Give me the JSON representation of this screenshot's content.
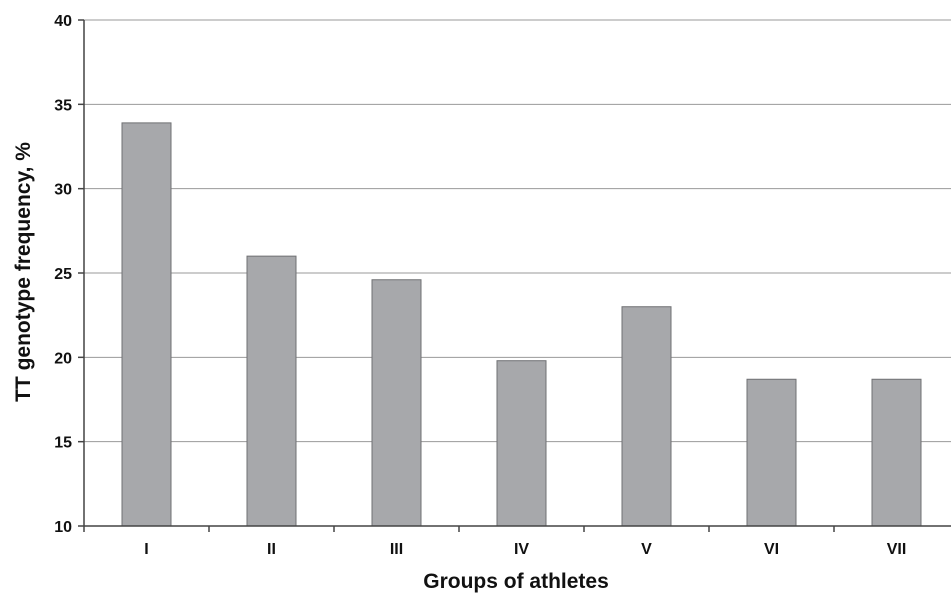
{
  "chart_data": {
    "type": "bar",
    "title": "",
    "xlabel": "Groups of athletes",
    "ylabel": "TT genotype frequency, %",
    "categories": [
      "I",
      "II",
      "III",
      "IV",
      "V",
      "VI",
      "VII"
    ],
    "values": [
      33.9,
      26.0,
      24.6,
      19.8,
      23.0,
      18.7,
      18.7
    ],
    "ylim": [
      10,
      40
    ],
    "yticks": [
      10,
      15,
      20,
      25,
      30,
      35,
      40
    ],
    "ytick_labels": [
      "10",
      "15",
      "20",
      "25",
      "30",
      "35",
      "40"
    ],
    "grid": true,
    "legend": "none",
    "colors": {
      "bar_fill": "#a7a8ab",
      "bar_stroke": "#6f7073",
      "grid": "#9a9a9a",
      "axis": "#444444"
    }
  }
}
